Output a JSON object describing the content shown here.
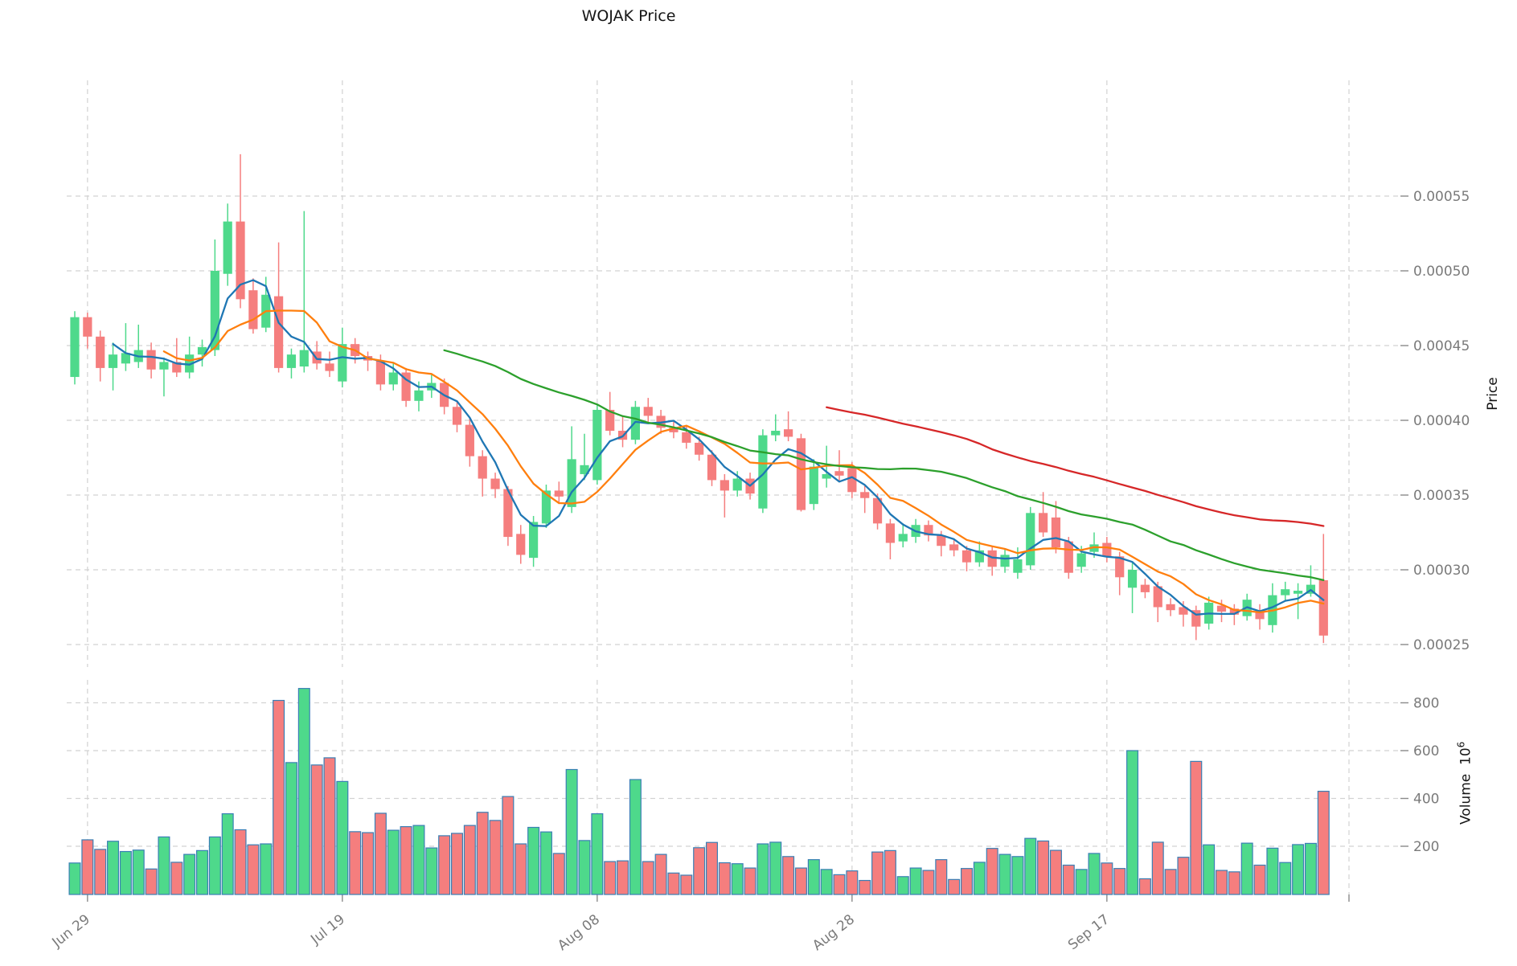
{
  "title": "WOJAK Price",
  "axis": {
    "price_label": "Price",
    "volume_label": "Volume",
    "volume_base": "10",
    "volume_exponent": "6"
  },
  "chart_data": {
    "type": "candlestick",
    "title": "WOJAK Price",
    "background": "#ffffff",
    "grid": {
      "on": true,
      "color": "#d2d2d2",
      "dash": [
        6,
        5
      ]
    },
    "tick_label_color": "#7a7a7a",
    "up_color": "#4ed98b",
    "down_color": "#f57e7e",
    "volume_bar_edge_color": "#3a7fb5",
    "price_axis": {
      "side": "right",
      "ticks": [
        0.00055,
        0.0005,
        0.00045,
        0.0004,
        0.00035,
        0.0003,
        0.00025
      ],
      "tick_labels": [
        "0.00055",
        "0.00050",
        "0.00045",
        "0.00040",
        "0.00035",
        "0.00030",
        "0.00025"
      ],
      "label": "Price"
    },
    "volume_axis": {
      "side": "right",
      "ticks": [
        800,
        600,
        400,
        200
      ],
      "tick_labels": [
        "800",
        "600",
        "400",
        "200"
      ],
      "label": "Volume 10^6",
      "unit": 1000000
    },
    "x_axis": {
      "tick_days": [
        1,
        21,
        41,
        61,
        81,
        100
      ],
      "tick_labels": [
        "Jun 29",
        "Jul 19",
        "Aug 08",
        "Aug 28",
        "Sep 17",
        ""
      ],
      "label_rotation_deg": 38
    },
    "moving_averages": {
      "windows": [
        4,
        8,
        30,
        60
      ],
      "colors": [
        "#1f77b4",
        "#ff7f0e",
        "#2ca02c",
        "#d62728"
      ]
    },
    "ohlcv_format": [
      "open",
      "high",
      "low",
      "close",
      "volume_millions"
    ],
    "candles": [
      [
        0.000429,
        0.000473,
        0.000424,
        0.000469,
        130
      ],
      [
        0.000469,
        0.000472,
        0.000448,
        0.000456,
        227
      ],
      [
        0.000456,
        0.00046,
        0.000426,
        0.000435,
        187
      ],
      [
        0.000435,
        0.000452,
        0.00042,
        0.000444,
        221
      ],
      [
        0.000438,
        0.000465,
        0.000433,
        0.000445,
        178
      ],
      [
        0.000439,
        0.000464,
        0.000435,
        0.000447,
        184
      ],
      [
        0.000447,
        0.000452,
        0.000428,
        0.000434,
        105
      ],
      [
        0.000434,
        0.000442,
        0.000416,
        0.000439,
        239
      ],
      [
        0.000439,
        0.000455,
        0.000429,
        0.000432,
        133
      ],
      [
        0.000432,
        0.000456,
        0.000428,
        0.000444,
        166
      ],
      [
        0.000444,
        0.000454,
        0.000436,
        0.000449,
        182
      ],
      [
        0.000447,
        0.000521,
        0.000443,
        0.0005,
        239
      ],
      [
        0.000498,
        0.000545,
        0.00049,
        0.000533,
        336
      ],
      [
        0.000533,
        0.000578,
        0.000475,
        0.000481,
        269
      ],
      [
        0.000487,
        0.000495,
        0.000458,
        0.000461,
        206
      ],
      [
        0.000462,
        0.000496,
        0.000459,
        0.000484,
        210
      ],
      [
        0.000483,
        0.000519,
        0.000432,
        0.000435,
        810
      ],
      [
        0.000435,
        0.000448,
        0.000428,
        0.000444,
        550
      ],
      [
        0.000436,
        0.00054,
        0.000432,
        0.000447,
        860
      ],
      [
        0.000446,
        0.000453,
        0.000434,
        0.000438,
        540
      ],
      [
        0.000438,
        0.000446,
        0.000429,
        0.000433,
        570
      ],
      [
        0.000426,
        0.000462,
        0.000422,
        0.000451,
        471
      ],
      [
        0.000451,
        0.000455,
        0.000438,
        0.000443,
        261
      ],
      [
        0.000443,
        0.000446,
        0.000433,
        0.00044,
        257
      ],
      [
        0.00044,
        0.000444,
        0.00042,
        0.000424,
        338
      ],
      [
        0.000424,
        0.000439,
        0.00042,
        0.000432,
        267
      ],
      [
        0.000432,
        0.000435,
        0.000409,
        0.000413,
        282
      ],
      [
        0.000413,
        0.000426,
        0.000406,
        0.00042,
        287
      ],
      [
        0.00042,
        0.000431,
        0.000415,
        0.000425,
        193
      ],
      [
        0.000425,
        0.000428,
        0.000404,
        0.000409,
        244
      ],
      [
        0.000409,
        0.000413,
        0.000392,
        0.000397,
        254
      ],
      [
        0.000397,
        0.000402,
        0.000369,
        0.000376,
        287
      ],
      [
        0.000376,
        0.00038,
        0.000349,
        0.000361,
        342
      ],
      [
        0.000361,
        0.000365,
        0.000348,
        0.000354,
        308
      ],
      [
        0.000354,
        0.000356,
        0.000316,
        0.000322,
        408
      ],
      [
        0.000324,
        0.00033,
        0.000304,
        0.00031,
        210
      ],
      [
        0.000308,
        0.000336,
        0.000302,
        0.000332,
        279
      ],
      [
        0.000331,
        0.000357,
        0.000328,
        0.000353,
        260
      ],
      [
        0.000353,
        0.000359,
        0.000344,
        0.000349,
        170
      ],
      [
        0.000342,
        0.000396,
        0.000338,
        0.000374,
        521
      ],
      [
        0.000364,
        0.000391,
        0.00036,
        0.00037,
        224
      ],
      [
        0.00036,
        0.00041,
        0.000357,
        0.000407,
        336
      ],
      [
        0.000407,
        0.000419,
        0.00039,
        0.000393,
        136
      ],
      [
        0.000393,
        0.000403,
        0.000382,
        0.000387,
        139
      ],
      [
        0.000387,
        0.000413,
        0.000384,
        0.000409,
        479
      ],
      [
        0.000409,
        0.000415,
        0.000399,
        0.000403,
        136
      ],
      [
        0.000403,
        0.000407,
        0.000391,
        0.000395,
        166
      ],
      [
        0.000395,
        0.0004,
        0.000388,
        0.000392,
        88
      ],
      [
        0.000392,
        0.000396,
        0.000381,
        0.000385,
        79
      ],
      [
        0.000385,
        0.000389,
        0.000373,
        0.000377,
        194
      ],
      [
        0.000377,
        0.00038,
        0.000356,
        0.00036,
        216
      ],
      [
        0.00036,
        0.000364,
        0.000335,
        0.000353,
        131
      ],
      [
        0.000353,
        0.000366,
        0.000349,
        0.000361,
        127
      ],
      [
        0.000361,
        0.000365,
        0.000347,
        0.000351,
        109
      ],
      [
        0.000341,
        0.000394,
        0.000338,
        0.00039,
        210
      ],
      [
        0.00039,
        0.000404,
        0.000386,
        0.000393,
        217
      ],
      [
        0.000394,
        0.000406,
        0.000386,
        0.000389,
        157
      ],
      [
        0.000388,
        0.000391,
        0.000339,
        0.00034,
        109
      ],
      [
        0.000344,
        0.000374,
        0.00034,
        0.000369,
        144
      ],
      [
        0.000361,
        0.000383,
        0.000355,
        0.000364,
        103
      ],
      [
        0.000366,
        0.00038,
        0.000359,
        0.000363,
        81
      ],
      [
        0.000368,
        0.000372,
        0.000348,
        0.000352,
        97
      ],
      [
        0.000352,
        0.000356,
        0.000338,
        0.000348,
        57
      ],
      [
        0.000348,
        0.000351,
        0.000327,
        0.000331,
        176
      ],
      [
        0.000331,
        0.000334,
        0.000307,
        0.000318,
        182
      ],
      [
        0.000319,
        0.000331,
        0.000315,
        0.000324,
        73
      ],
      [
        0.000322,
        0.000334,
        0.000318,
        0.00033,
        109
      ],
      [
        0.00033,
        0.000333,
        0.000319,
        0.000323,
        99
      ],
      [
        0.000323,
        0.000326,
        0.000309,
        0.000316,
        144
      ],
      [
        0.000317,
        0.00032,
        0.000309,
        0.000313,
        61
      ],
      [
        0.000313,
        0.000316,
        0.000299,
        0.000305,
        107
      ],
      [
        0.000305,
        0.000319,
        0.000302,
        0.000313,
        133
      ],
      [
        0.000313,
        0.000316,
        0.000296,
        0.000302,
        191
      ],
      [
        0.000302,
        0.000314,
        0.000298,
        0.00031,
        166
      ],
      [
        0.000298,
        0.000315,
        0.000294,
        0.000307,
        157
      ],
      [
        0.000303,
        0.000342,
        0.0003,
        0.000338,
        233
      ],
      [
        0.000338,
        0.000352,
        0.000322,
        0.000325,
        222
      ],
      [
        0.000335,
        0.000346,
        0.000311,
        0.000315,
        183
      ],
      [
        0.000319,
        0.000322,
        0.000294,
        0.000298,
        121
      ],
      [
        0.000302,
        0.000316,
        0.000298,
        0.000311,
        103
      ],
      [
        0.000312,
        0.000325,
        0.000308,
        0.000317,
        170
      ],
      [
        0.000318,
        0.000322,
        0.000305,
        0.000309,
        130
      ],
      [
        0.000309,
        0.000312,
        0.000283,
        0.000295,
        107
      ],
      [
        0.000288,
        0.000305,
        0.000271,
        0.0003,
        600
      ],
      [
        0.00029,
        0.000294,
        0.000281,
        0.000285,
        64
      ],
      [
        0.000289,
        0.000292,
        0.000265,
        0.000275,
        217
      ],
      [
        0.000277,
        0.000281,
        0.000269,
        0.000273,
        103
      ],
      [
        0.000275,
        0.000279,
        0.000262,
        0.00027,
        154
      ],
      [
        0.000273,
        0.000276,
        0.000253,
        0.000262,
        555
      ],
      [
        0.000264,
        0.000282,
        0.00026,
        0.000278,
        206
      ],
      [
        0.000276,
        0.00028,
        0.000265,
        0.000272,
        99
      ],
      [
        0.000274,
        0.000277,
        0.000263,
        0.00027,
        93
      ],
      [
        0.000269,
        0.000284,
        0.000266,
        0.00028,
        213
      ],
      [
        0.000273,
        0.000277,
        0.00026,
        0.000267,
        121
      ],
      [
        0.000263,
        0.000291,
        0.000258,
        0.000283,
        192
      ],
      [
        0.000283,
        0.000292,
        0.000279,
        0.000287,
        132
      ],
      [
        0.000284,
        0.000291,
        0.000267,
        0.000286,
        207
      ],
      [
        0.000284,
        0.000303,
        0.000282,
        0.00029,
        212
      ],
      [
        0.000293,
        0.000324,
        0.000251,
        0.000256,
        430
      ]
    ]
  }
}
